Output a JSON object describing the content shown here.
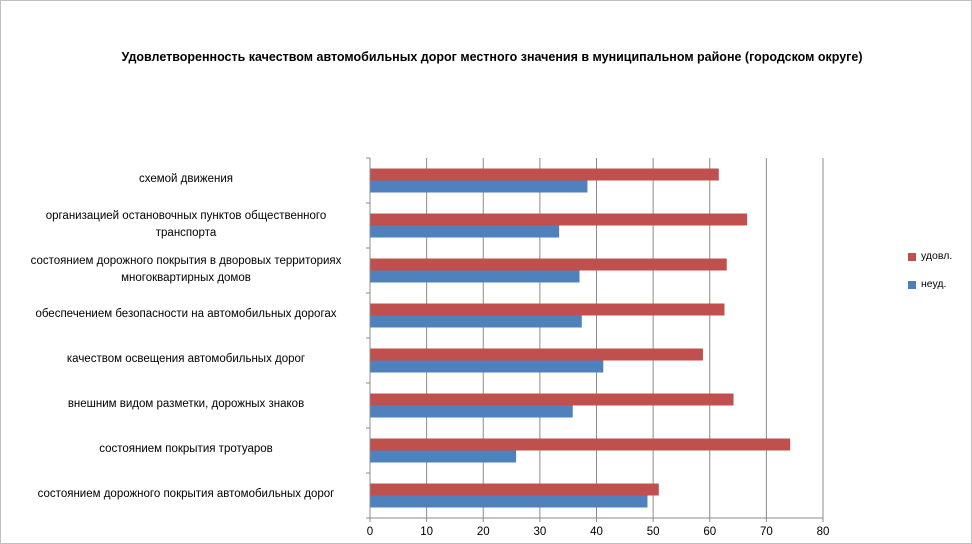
{
  "chart_data": {
    "type": "bar",
    "orientation": "horizontal",
    "title": "Удовлетворенность качеством автомобильных дорог местного значения в муниципальном районе (городском округе)",
    "categories": [
      "схемой движения",
      "организацией остановочных пунктов общественного транспорта",
      "состоянием дорожного покрытия в дворовых территориях многоквартирных домов",
      "обеспечением  безопасности на автомобильных дорогах",
      "качеством освещения  автомобильных дорог",
      "внешним  видом разметки, дорожных знаков",
      "состоянием  покрытия тротуаров",
      "состоянием дорожного покрытия автомобильных дорог"
    ],
    "category_lines": [
      [
        "схемой движения"
      ],
      [
        "организацией остановочных пунктов общественного",
        "транспорта"
      ],
      [
        "состоянием дорожного покрытия в дворовых территориях",
        "многоквартирных домов"
      ],
      [
        "обеспечением  безопасности на автомобильных дорогах"
      ],
      [
        "качеством освещения  автомобильных дорог"
      ],
      [
        "внешним  видом разметки, дорожных знаков"
      ],
      [
        "состоянием  покрытия тротуаров"
      ],
      [
        "состоянием дорожного покрытия автомобильных дорог"
      ]
    ],
    "series": [
      {
        "name": "удовл.",
        "color": "#c0504d",
        "values": [
          61.6,
          66.6,
          63.0,
          62.6,
          58.8,
          64.2,
          74.2,
          51.0
        ]
      },
      {
        "name": "неуд.",
        "color": "#4f81bd",
        "values": [
          38.4,
          33.4,
          37.0,
          37.4,
          41.2,
          35.8,
          25.8,
          49.0
        ]
      }
    ],
    "xlim": [
      0,
      80
    ],
    "xticks": [
      "0",
      "10",
      "20",
      "30",
      "40",
      "50",
      "60",
      "70",
      "80"
    ],
    "grid": true,
    "legend_position": "right",
    "xlabel": "",
    "ylabel": ""
  }
}
